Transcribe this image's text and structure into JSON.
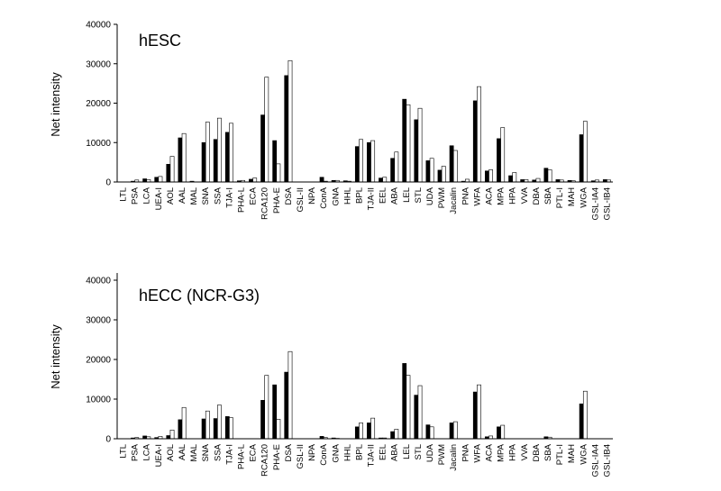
{
  "chart_data": [
    {
      "type": "bar",
      "title": "hESC",
      "ylabel": "Net intensity",
      "ylim": [
        0,
        40000
      ],
      "yticks": [
        "0",
        "10000",
        "20000",
        "30000",
        "40000"
      ],
      "grid": false,
      "legend": "none",
      "categories": [
        "LTL",
        "PSA",
        "LCA",
        "UEA-I",
        "AOL",
        "AAL",
        "MAL",
        "SNA",
        "SSA",
        "TJA-I",
        "PHA-L",
        "ECA",
        "RCA120",
        "PHA-E",
        "DSA",
        "GSL-II",
        "NPA",
        "ConA",
        "GNA",
        "HHL",
        "BPL",
        "TJA-II",
        "EEL",
        "ABA",
        "LEL",
        "STL",
        "UDA",
        "PWM",
        "Jacalin",
        "PNA",
        "WFA",
        "ACA",
        "MPA",
        "HPA",
        "VVA",
        "DBA",
        "SBA",
        "PTL-I",
        "MAH",
        "WGA",
        "GSL-IA4",
        "GSL-IB4"
      ],
      "series": [
        {
          "color": "#000000",
          "values": [
            0,
            200,
            800,
            1200,
            4500,
            11200,
            200,
            10000,
            10800,
            12600,
            300,
            700,
            17000,
            10500,
            27000,
            0,
            0,
            1200,
            400,
            300,
            9000,
            10000,
            1000,
            6000,
            21000,
            15800,
            5400,
            3000,
            9200,
            200,
            20600,
            2800,
            11000,
            1600,
            600,
            500,
            3500,
            600,
            400,
            12000,
            300,
            600
          ]
        },
        {
          "color": "#ffffff",
          "values": [
            0,
            500,
            600,
            1400,
            6500,
            12300,
            0,
            15200,
            16200,
            14900,
            400,
            1000,
            26600,
            4600,
            30800,
            0,
            0,
            200,
            400,
            200,
            10800,
            10500,
            1200,
            7600,
            19600,
            18700,
            6000,
            4000,
            8000,
            700,
            24200,
            3100,
            13800,
            2400,
            600,
            900,
            3100,
            500,
            300,
            15400,
            500,
            500
          ]
        }
      ]
    },
    {
      "type": "bar",
      "title": "hECC (NCR-G3)",
      "ylabel": "Net intensity",
      "ylim": [
        0,
        40000
      ],
      "yticks": [
        "0",
        "10000",
        "20000",
        "30000",
        "40000"
      ],
      "grid": false,
      "legend": "none",
      "categories": [
        "LTL",
        "PSA",
        "LCA",
        "UEA-I",
        "AOL",
        "AAL",
        "MAL",
        "SNA",
        "SSA",
        "TJA-I",
        "PHA-L",
        "ECA",
        "RCA120",
        "PHA-E",
        "DSA",
        "GSL-II",
        "NPA",
        "ConA",
        "GNA",
        "HHL",
        "BPL",
        "TJA-II",
        "EEL",
        "ABA",
        "LEL",
        "STL",
        "UDA",
        "PWM",
        "Jacalin",
        "PNA",
        "WFA",
        "ACA",
        "MPA",
        "HPA",
        "VVA",
        "DBA",
        "SBA",
        "PTL-I",
        "MAH",
        "WGA",
        "GSL-IA4",
        "GSL-IB4"
      ],
      "series": [
        {
          "color": "#000000",
          "values": [
            0,
            200,
            700,
            300,
            800,
            4800,
            0,
            5000,
            5100,
            5600,
            0,
            0,
            9700,
            13600,
            16800,
            0,
            0,
            600,
            200,
            0,
            3000,
            4000,
            200,
            1800,
            19000,
            11000,
            3500,
            0,
            4000,
            0,
            11800,
            500,
            3000,
            0,
            0,
            0,
            500,
            0,
            0,
            8800,
            0,
            0
          ]
        },
        {
          "color": "#ffffff",
          "values": [
            0,
            300,
            500,
            600,
            2200,
            7900,
            0,
            7000,
            8500,
            5300,
            0,
            0,
            16000,
            4900,
            22000,
            0,
            0,
            300,
            100,
            0,
            4000,
            5200,
            200,
            2400,
            16000,
            13400,
            3000,
            0,
            4300,
            0,
            13600,
            700,
            3400,
            0,
            0,
            0,
            400,
            0,
            0,
            12000,
            0,
            0
          ]
        }
      ]
    }
  ]
}
